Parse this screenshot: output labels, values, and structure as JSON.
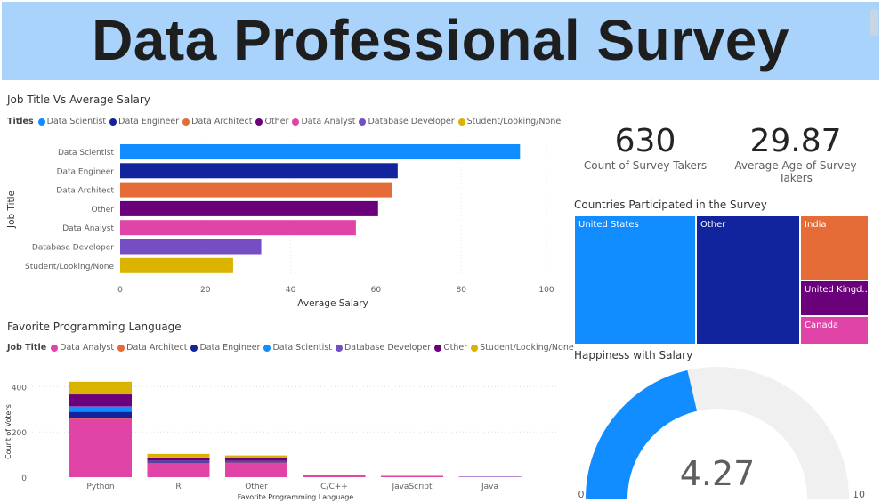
{
  "header": {
    "title": "Data Professional Survey"
  },
  "colors": {
    "Data Scientist": "#118dff",
    "Data Engineer": "#12239e",
    "Data Architect": "#e66c37",
    "Other": "#6b007b",
    "Data Analyst": "#e044a7",
    "Database Developer": "#744ec2",
    "Student/Looking/None": "#d9b300"
  },
  "chart_data": [
    {
      "type": "bar",
      "orientation": "horizontal",
      "title": "Job Title Vs Average Salary",
      "legend_title": "Titles",
      "legend_position": "top-left",
      "categories": [
        "Data Scientist",
        "Data Engineer",
        "Data Architect",
        "Other",
        "Data Analyst",
        "Database Developer",
        "Student/Looking/None"
      ],
      "values": [
        93.8,
        65.1,
        63.8,
        60.5,
        55.3,
        33.1,
        26.5
      ],
      "xlabel": "Average Salary",
      "ylabel": "Job Title",
      "xlim": [
        0,
        100
      ],
      "xticks": [
        "0",
        "20",
        "40",
        "60",
        "80",
        "100"
      ],
      "grid": true
    },
    {
      "type": "bar",
      "stacked": true,
      "title": "Favorite Programming Language",
      "legend_title": "Job Title",
      "legend_position": "top-left",
      "categories": [
        "Python",
        "R",
        "Other",
        "C/C++",
        "JavaScript",
        "Java"
      ],
      "series": [
        {
          "name": "Data Analyst",
          "values": [
            258,
            63,
            64,
            6,
            4,
            2
          ]
        },
        {
          "name": "Data Architect",
          "values": [
            3,
            1,
            1,
            0,
            0,
            0
          ]
        },
        {
          "name": "Data Engineer",
          "values": [
            28,
            5,
            4,
            1,
            1,
            0
          ]
        },
        {
          "name": "Data Scientist",
          "values": [
            22,
            2,
            2,
            1,
            0,
            1
          ]
        },
        {
          "name": "Database Developer",
          "values": [
            3,
            2,
            1,
            0,
            1,
            0
          ]
        },
        {
          "name": "Other",
          "values": [
            52,
            14,
            12,
            0,
            0,
            0
          ]
        },
        {
          "name": "Student/Looking/None",
          "values": [
            56,
            16,
            12,
            0,
            0,
            0
          ]
        }
      ],
      "xlabel": "Favorite Programming Language",
      "ylabel": "Count of Voters",
      "ylim": [
        0,
        420
      ],
      "yticks": [
        "0",
        "200",
        "400"
      ],
      "grid": true
    },
    {
      "type": "treemap",
      "title": "Countries Participated in the Survey",
      "items": [
        {
          "label": "United States",
          "color": "#118dff"
        },
        {
          "label": "Other",
          "color": "#12239e"
        },
        {
          "label": "India",
          "color": "#e66c37"
        },
        {
          "label": "United Kingd...",
          "color": "#6b007b"
        },
        {
          "label": "Canada",
          "color": "#e044a7"
        }
      ]
    },
    {
      "type": "gauge",
      "title": "Happiness with Salary",
      "value": 4.27,
      "value_label": "4.27",
      "min": 0,
      "max": 10,
      "min_label": "0",
      "max_label": "10",
      "fill": "#118dff",
      "track": "#f0f0f0"
    }
  ],
  "kpis": [
    {
      "value": "630",
      "label": "Count of Survey Takers"
    },
    {
      "value": "29.87",
      "label": "Average Age of Survey Takers"
    }
  ]
}
